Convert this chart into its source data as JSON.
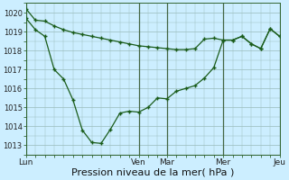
{
  "bg_color": "#cceeff",
  "grid_color": "#99bbbb",
  "line_color": "#1a5c1a",
  "marker_color": "#1a5c1a",
  "xlabel": "Pression niveau de la mer( hPa )",
  "xlabel_fontsize": 8,
  "ylim": [
    1012.5,
    1020.5
  ],
  "yticks": [
    1013,
    1014,
    1015,
    1016,
    1017,
    1018,
    1019,
    1020
  ],
  "xtick_labels": [
    "Lun",
    "",
    "Ven",
    "Mar",
    "",
    "Mer",
    "",
    "Jeu"
  ],
  "vline_positions": [
    0,
    12,
    15,
    21,
    27
  ],
  "day_labels": [
    "Lun",
    "Ven",
    "Mar",
    "Mer",
    "Jeu"
  ],
  "day_positions": [
    0,
    12,
    15,
    21,
    27
  ],
  "line1_x": [
    0,
    1,
    2,
    3,
    4,
    5,
    6,
    7,
    8,
    9,
    10,
    11,
    12,
    13,
    14,
    15,
    16,
    17,
    18,
    19,
    20,
    21,
    22,
    23,
    24,
    25,
    26,
    27
  ],
  "line1_y": [
    1020.2,
    1019.6,
    1019.55,
    1019.3,
    1019.1,
    1018.95,
    1018.85,
    1018.75,
    1018.65,
    1018.55,
    1018.45,
    1018.35,
    1018.25,
    1018.2,
    1018.15,
    1018.1,
    1018.05,
    1018.05,
    1018.1,
    1018.6,
    1018.65,
    1018.55,
    1018.55,
    1018.75,
    1018.35,
    1018.1,
    1019.15,
    1018.75
  ],
  "line2_x": [
    0,
    1,
    2,
    3,
    4,
    5,
    6,
    7,
    8,
    9,
    10,
    11,
    12,
    13,
    14,
    15,
    16,
    17,
    18,
    19,
    20,
    21,
    22,
    23,
    24,
    25,
    26,
    27
  ],
  "line2_y": [
    1019.7,
    1019.1,
    1018.75,
    1017.0,
    1016.5,
    1015.4,
    1013.8,
    1013.15,
    1013.1,
    1013.85,
    1014.7,
    1014.8,
    1014.75,
    1015.0,
    1015.5,
    1015.45,
    1015.85,
    1016.0,
    1016.15,
    1016.55,
    1017.1,
    1018.55,
    1018.55,
    1018.75,
    1018.35,
    1018.1,
    1019.15,
    1018.75
  ]
}
